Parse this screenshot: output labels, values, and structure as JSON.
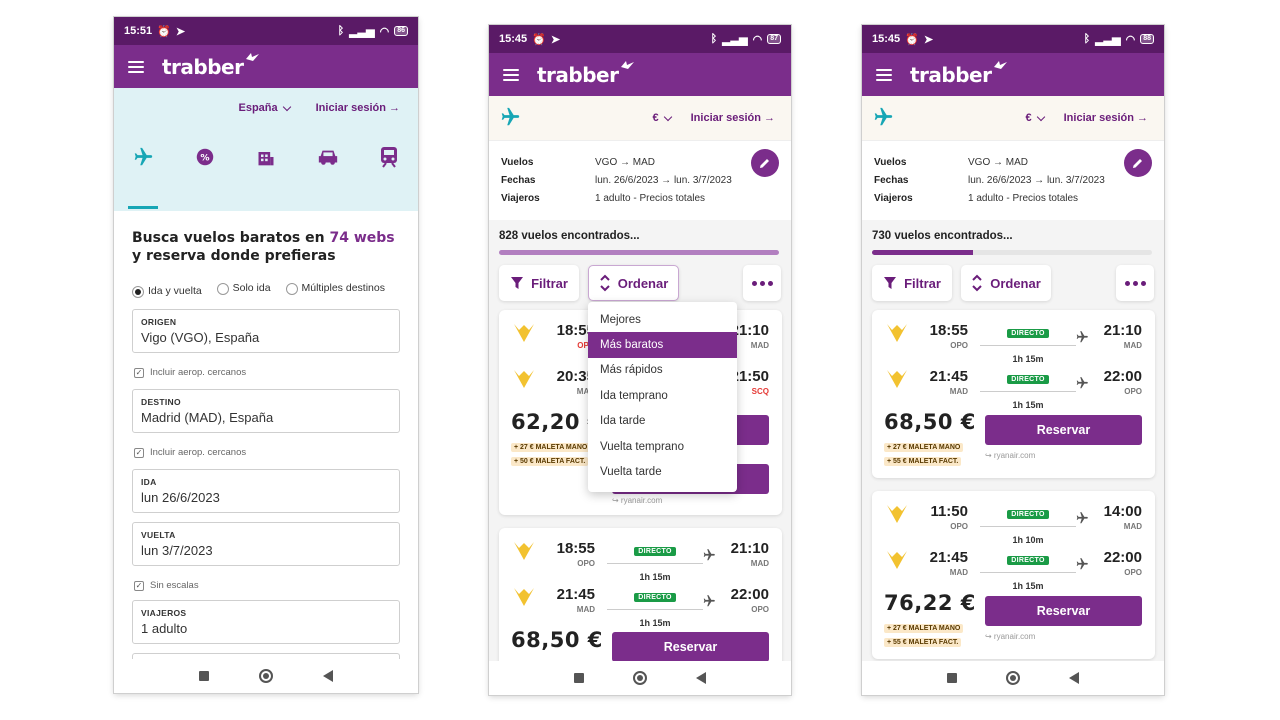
{
  "phone1": {
    "status": {
      "time": "15:51",
      "battery": "86"
    },
    "app": {
      "logo": "trabber"
    },
    "nav": {
      "country": "España",
      "login": "Iniciar sesión →"
    },
    "categories": [
      "plane-icon",
      "discount-icon",
      "hotel-icon",
      "car-icon",
      "train-icon"
    ],
    "headline": {
      "part1": "Busca vuelos baratos en ",
      "highlight": "74 webs",
      "part2": " y reserva donde prefieras"
    },
    "trip_types": [
      "Ida y vuelta",
      "Solo ida",
      "Múltiples destinos"
    ],
    "origin": {
      "label": "ORIGEN",
      "value": "Vigo (VGO), España"
    },
    "nearby1": "Incluir aerop. cercanos",
    "destination": {
      "label": "DESTINO",
      "value": "Madrid (MAD), España"
    },
    "nearby2": "Incluir aerop. cercanos",
    "outbound": {
      "label": "IDA",
      "value": "lun 26/6/2023"
    },
    "return": {
      "label": "VUELTA",
      "value": "lun 3/7/2023"
    },
    "nonstop": "Sin escalas",
    "travelers": {
      "label": "VIAJEROS",
      "value": "1 adulto"
    }
  },
  "phone2": {
    "status": {
      "time": "15:45",
      "battery": "87"
    },
    "app": {
      "logo": "trabber"
    },
    "nav": {
      "currency": "€",
      "login": "Iniciar sesión →"
    },
    "summary": {
      "flights_k": "Vuelos",
      "flights_v": "VGO → MAD",
      "dates_k": "Fechas",
      "dates_v": "lun. 26/6/2023 → lun. 3/7/2023",
      "travelers_k": "Viajeros",
      "travelers_v": "1 adulto - Precios totales"
    },
    "found": "828 vuelos encontrados...",
    "progress": 1.0,
    "filter": "Filtrar",
    "sort": "Ordenar",
    "sort_options": [
      "Mejores",
      "Más baratos",
      "Más rápidos",
      "Ida temprano",
      "Ida tarde",
      "Vuelta temprano",
      "Vuelta tarde"
    ],
    "sort_selected": "Más baratos",
    "card1": {
      "leg1": {
        "dep": "18:55",
        "dep_ap": "OPO",
        "arr": "21:10",
        "arr_ap": "MAD"
      },
      "leg2": {
        "dep": "20:35",
        "dep_ap": "MAD",
        "arr": "21:50",
        "arr_ap": "SCQ"
      },
      "price": "62,20 €",
      "fee1": "+ 27 € MALETA MANO",
      "fee2": "+ 50 € MALETA FACT.",
      "source": "↪ ryanair.com"
    },
    "card2": {
      "leg1": {
        "dep": "18:55",
        "dep_ap": "OPO",
        "badge": "DIRECTO",
        "dur": "1h 15m",
        "arr": "21:10",
        "arr_ap": "MAD"
      },
      "leg2": {
        "dep": "21:45",
        "dep_ap": "MAD",
        "badge": "DIRECTO",
        "dur": "1h 15m",
        "arr": "22:00",
        "arr_ap": "OPO"
      },
      "price": "68,50 €",
      "reserve": "Reservar"
    }
  },
  "phone3": {
    "status": {
      "time": "15:45",
      "battery": "88"
    },
    "app": {
      "logo": "trabber"
    },
    "nav": {
      "currency": "€",
      "login": "Iniciar sesión →"
    },
    "summary": {
      "flights_k": "Vuelos",
      "flights_v": "VGO → MAD",
      "dates_k": "Fechas",
      "dates_v": "lun. 26/6/2023 → lun. 3/7/2023",
      "travelers_k": "Viajeros",
      "travelers_v": "1 adulto - Precios totales"
    },
    "found": "730 vuelos encontrados...",
    "progress": 0.36,
    "filter": "Filtrar",
    "sort": "Ordenar",
    "card1": {
      "leg1": {
        "dep": "18:55",
        "dep_ap": "OPO",
        "badge": "DIRECTO",
        "dur": "1h 15m",
        "arr": "21:10",
        "arr_ap": "MAD"
      },
      "leg2": {
        "dep": "21:45",
        "dep_ap": "MAD",
        "badge": "DIRECTO",
        "dur": "1h 15m",
        "arr": "22:00",
        "arr_ap": "OPO"
      },
      "price": "68,50 €",
      "fee1": "+ 27 € MALETA MANO",
      "fee2": "+ 55 € MALETA FACT.",
      "reserve": "Reservar",
      "source": "↪ ryanair.com"
    },
    "card2": {
      "leg1": {
        "dep": "11:50",
        "dep_ap": "OPO",
        "badge": "DIRECTO",
        "dur": "1h 10m",
        "arr": "14:00",
        "arr_ap": "MAD"
      },
      "leg2": {
        "dep": "21:45",
        "dep_ap": "MAD",
        "badge": "DIRECTO",
        "dur": "1h 15m",
        "arr": "22:00",
        "arr_ap": "OPO"
      },
      "price": "76,22 €",
      "fee1": "+ 27 € MALETA MANO",
      "fee2": "+ 55 € MALETA FACT.",
      "reserve": "Reservar",
      "source": "↪ ryanair.com"
    }
  },
  "colors": {
    "brand": "#7b2d8b",
    "statusbar": "#5a1a66",
    "direct_badge": "#1a9b46",
    "hero_bg": "#dff2f5"
  }
}
